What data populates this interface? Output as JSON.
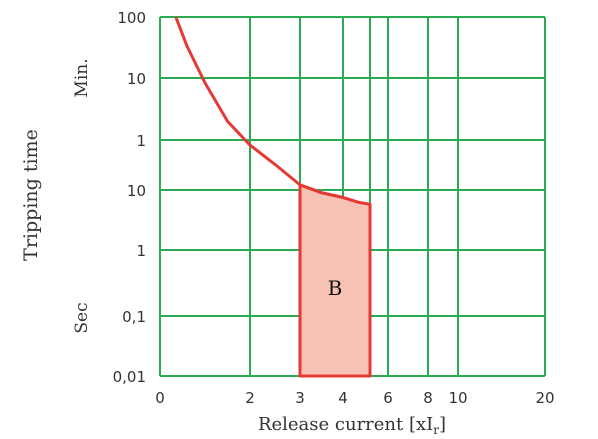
{
  "chart_data": {
    "type": "line",
    "title": "",
    "ylabel": "Tripping time",
    "xlabel": "Release current [xI",
    "xlabel_suffix": "]",
    "xlabel_sub": "r",
    "y_group_min": "Min.",
    "y_group_sec": "Sec",
    "x_ticks": [
      "0",
      "2",
      "3",
      "4",
      "6",
      "8",
      "10",
      "20"
    ],
    "y_ticks_min": [
      "100",
      "10",
      "1"
    ],
    "y_ticks_sec": [
      "10",
      "1",
      "0,1",
      "0,01"
    ],
    "grid": true,
    "curve": {
      "x": [
        0.35,
        0.6,
        1.0,
        1.5,
        2.0,
        2.5,
        3.0,
        3.5,
        4.0,
        4.6
      ],
      "y_seconds": [
        6000,
        2000,
        500,
        120,
        50,
        25,
        12,
        9,
        7.5,
        6.2
      ]
    },
    "zone": {
      "label": "B",
      "x_left": 3,
      "x_right": 5,
      "y_bottom_seconds": 0.01,
      "upper_x": [
        3.0,
        3.5,
        4.0,
        4.6,
        5.0
      ],
      "upper_y_seconds": [
        12,
        9,
        7.5,
        6.2,
        5.8
      ]
    },
    "colors": {
      "grid": "#2bab52",
      "curve": "#e53935",
      "zone_fill": "#f6c2b3",
      "background": "#ffffff"
    }
  }
}
